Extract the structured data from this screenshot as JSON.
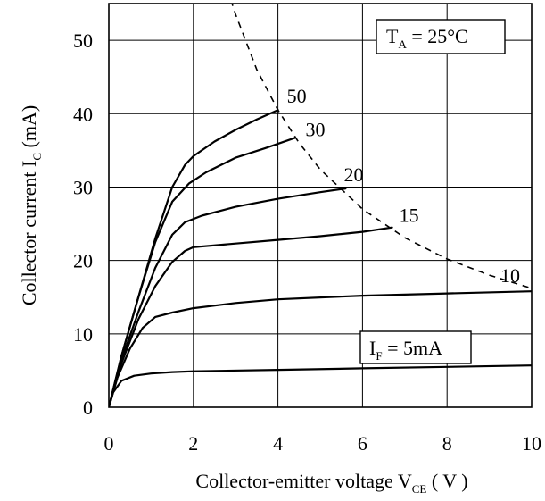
{
  "chart_data": {
    "type": "line",
    "xlabel_main": "Collector-emitter voltage V",
    "xlabel_sub": "CE",
    "xlabel_unit": " ( V )",
    "ylabel_main": "Collector current I",
    "ylabel_sub": "C",
    "ylabel_unit": " (mA)",
    "xlim": [
      0,
      10
    ],
    "ylim": [
      0,
      55
    ],
    "x_ticks": [
      0,
      2,
      4,
      6,
      8,
      10
    ],
    "y_ticks": [
      0,
      10,
      20,
      30,
      40,
      50
    ],
    "grid": true,
    "series": [
      {
        "name": "50",
        "x": [
          0,
          0.3,
          0.7,
          1.1,
          1.5,
          1.8,
          2.0,
          2.5,
          3.0,
          3.5,
          4.0
        ],
        "y": [
          0,
          7,
          15,
          23,
          30,
          33,
          34.2,
          36.2,
          37.8,
          39.2,
          40.5
        ]
      },
      {
        "name": "30",
        "x": [
          0,
          0.3,
          0.7,
          1.1,
          1.5,
          1.9,
          2.3,
          3.0,
          3.7,
          4.4
        ],
        "y": [
          0,
          7,
          15,
          22.5,
          28,
          30.5,
          32,
          34,
          35.3,
          36.7
        ]
      },
      {
        "name": "20",
        "x": [
          0,
          0.3,
          0.7,
          1.1,
          1.5,
          1.8,
          2.2,
          3.0,
          4.0,
          5.0,
          5.6
        ],
        "y": [
          0,
          6.5,
          13,
          19,
          23.5,
          25.2,
          26.1,
          27.3,
          28.4,
          29.3,
          29.8
        ]
      },
      {
        "name": "15",
        "x": [
          0,
          0.3,
          0.7,
          1.1,
          1.5,
          1.8,
          2.0,
          3.0,
          4.0,
          5.0,
          6.0,
          6.7
        ],
        "y": [
          0,
          6,
          12,
          16.5,
          19.8,
          21.3,
          21.8,
          22.3,
          22.8,
          23.3,
          23.9,
          24.5
        ]
      },
      {
        "name": "10",
        "x": [
          0,
          0.2,
          0.5,
          0.8,
          1.1,
          1.5,
          2.0,
          3.0,
          4.0,
          6.0,
          8.0,
          10.0
        ],
        "y": [
          0,
          4,
          8,
          10.8,
          12.3,
          12.9,
          13.5,
          14.2,
          14.7,
          15.2,
          15.5,
          15.8
        ]
      },
      {
        "name": "I_F = 5mA",
        "x": [
          0,
          0.1,
          0.3,
          0.6,
          1.0,
          1.5,
          2.0,
          4.0,
          6.0,
          8.0,
          10.0
        ],
        "y": [
          0,
          2,
          3.6,
          4.3,
          4.6,
          4.8,
          4.9,
          5.1,
          5.3,
          5.5,
          5.7
        ]
      }
    ],
    "curve_labels": [
      "50",
      "30",
      "20",
      "15",
      "10"
    ],
    "if_label_main": "I",
    "if_label_sub": "F",
    "if_label_rest": " = 5mA",
    "ta_label_main": "T",
    "ta_label_sub": "A",
    "ta_label_rest": " = 25°C",
    "power_limit": {
      "x": [
        2.8,
        3.0,
        3.5,
        4.0,
        4.5,
        5.0,
        6.0,
        7.0,
        8.0,
        9.0,
        10.0
      ],
      "y": [
        57,
        53.5,
        46.0,
        40.5,
        36.0,
        32.4,
        27.0,
        23.1,
        20.2,
        18.0,
        16.2
      ]
    }
  }
}
